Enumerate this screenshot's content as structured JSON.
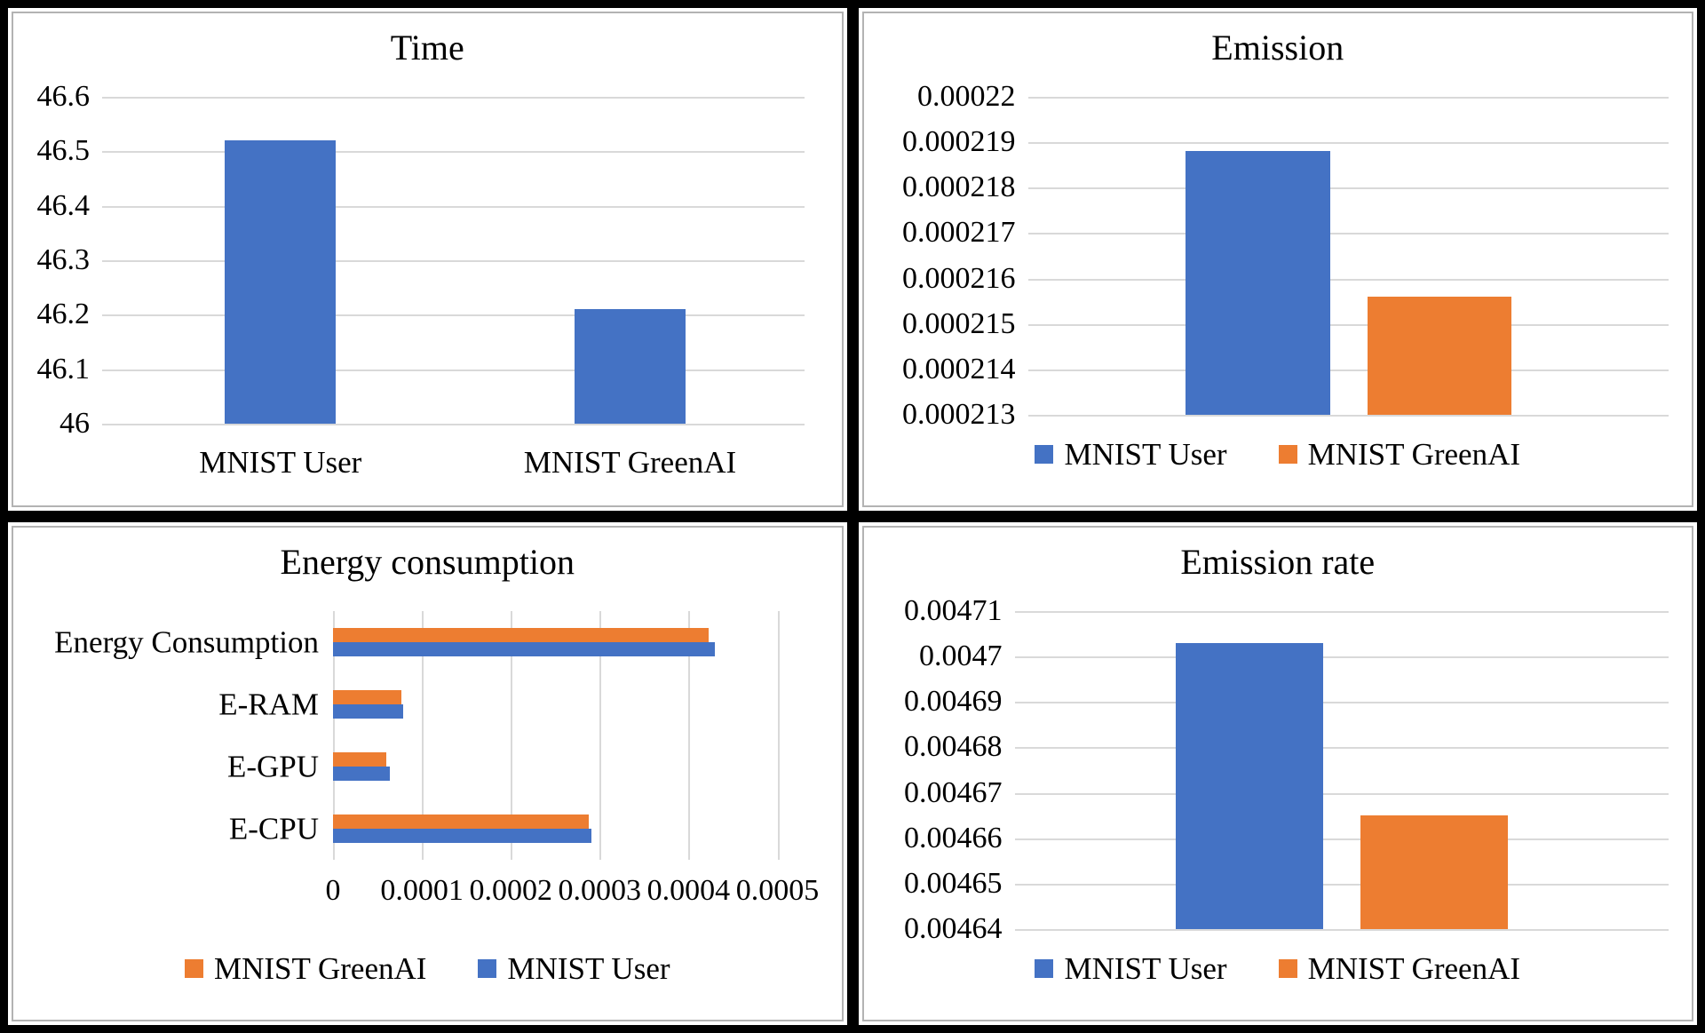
{
  "colors": {
    "blue": "#4472C4",
    "orange": "#ED7D31",
    "gridline": "#D9D9D9",
    "panel_border": "#B3B3B3",
    "frame": "#000000"
  },
  "chart_data": [
    {
      "id": "time",
      "type": "bar",
      "orientation": "vertical",
      "title": "Time",
      "categories": [
        "MNIST User",
        "MNIST GreenAI"
      ],
      "values": [
        46.52,
        46.21
      ],
      "bar_colors": [
        "blue",
        "blue"
      ],
      "ylim": [
        46,
        46.6
      ],
      "yticks": [
        "46.6",
        "46.5",
        "46.4",
        "46.3",
        "46.2",
        "46.1",
        "46"
      ],
      "grid": true,
      "show_category_labels": true,
      "legend": null,
      "legend_position": null
    },
    {
      "id": "emission",
      "type": "bar",
      "orientation": "vertical",
      "title": "Emission",
      "categories": [
        "MNIST User",
        "MNIST GreenAI"
      ],
      "values": [
        0.0002188,
        0.0002156
      ],
      "bar_colors": [
        "blue",
        "orange"
      ],
      "ylim": [
        0.000213,
        0.00022
      ],
      "yticks": [
        "0.00022",
        "0.000219",
        "0.000218",
        "0.000217",
        "0.000216",
        "0.000215",
        "0.000214",
        "0.000213"
      ],
      "grid": true,
      "show_category_labels": false,
      "legend": [
        {
          "label": "MNIST User",
          "color": "blue"
        },
        {
          "label": "MNIST GreenAI",
          "color": "orange"
        }
      ],
      "legend_position": "bottom"
    },
    {
      "id": "energy",
      "type": "bar",
      "orientation": "horizontal",
      "title": "Energy consumption",
      "categories": [
        "Energy Consumption",
        "E-RAM",
        "E-GPU",
        "E-CPU"
      ],
      "series": [
        {
          "name": "MNIST GreenAI",
          "color": "orange",
          "values": [
            0.000423,
            7.7e-05,
            6e-05,
            0.000288
          ]
        },
        {
          "name": "MNIST User",
          "color": "blue",
          "values": [
            0.00043,
            7.85e-05,
            6.35e-05,
            0.000291
          ]
        }
      ],
      "xlim": [
        0,
        0.0005
      ],
      "xticks": [
        "0",
        "0.0001",
        "0.0002",
        "0.0003",
        "0.0004",
        "0.0005"
      ],
      "grid": true,
      "legend": [
        {
          "label": "MNIST GreenAI",
          "color": "orange"
        },
        {
          "label": "MNIST User",
          "color": "blue"
        }
      ],
      "legend_position": "bottom"
    },
    {
      "id": "emission-rate",
      "type": "bar",
      "orientation": "vertical",
      "title": "Emission rate",
      "categories": [
        "MNIST User",
        "MNIST GreenAI"
      ],
      "values": [
        0.004703,
        0.004665
      ],
      "bar_colors": [
        "blue",
        "orange"
      ],
      "ylim": [
        0.00464,
        0.00471
      ],
      "yticks": [
        "0.00471",
        "0.0047",
        "0.00469",
        "0.00468",
        "0.00467",
        "0.00466",
        "0.00465",
        "0.00464"
      ],
      "grid": true,
      "show_category_labels": false,
      "legend": [
        {
          "label": "MNIST User",
          "color": "blue"
        },
        {
          "label": "MNIST GreenAI",
          "color": "orange"
        }
      ],
      "legend_position": "bottom"
    }
  ]
}
